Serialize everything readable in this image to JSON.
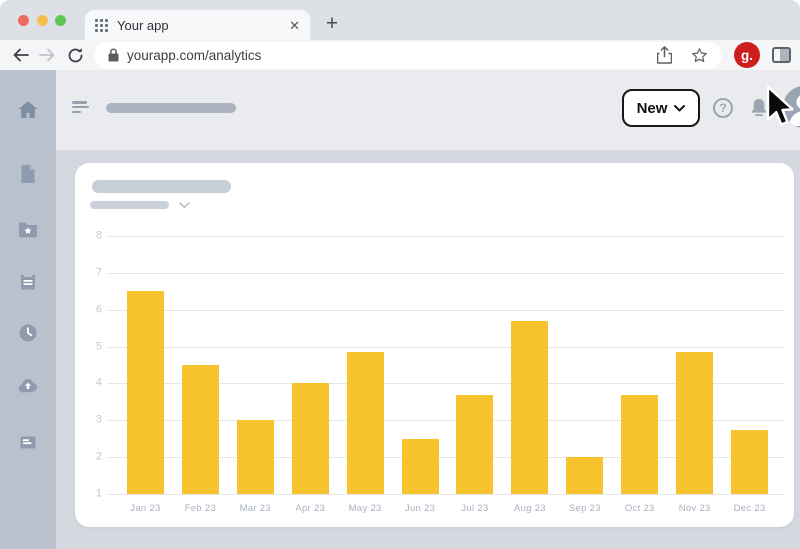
{
  "window": {
    "traffic_lights": [
      {
        "name": "close",
        "color": "#EC6A5E"
      },
      {
        "name": "minimize",
        "color": "#F5BF4F"
      },
      {
        "name": "zoom",
        "color": "#61C554"
      }
    ]
  },
  "browser": {
    "tab_title": "Your app",
    "tab_close_glyph": "✕",
    "new_tab_glyph": "+",
    "url": "yourapp.com/analytics",
    "g_badge": "g.",
    "toolbar_icons": [
      "back-icon",
      "forward-icon",
      "reload-icon",
      "lock-icon",
      "share-icon",
      "bookmark-star-icon",
      "g-badge",
      "side-panel-icon"
    ]
  },
  "app": {
    "new_button": "New",
    "help_glyph": "?",
    "header_icons": [
      "menu-icon",
      "help-icon",
      "bell-icon",
      "avatar"
    ],
    "sidebar_icons": [
      "home-icon",
      "document-icon",
      "starred-folder-icon",
      "ledger-icon",
      "history-clock-icon",
      "cloud-upload-icon",
      "notes-icon"
    ]
  },
  "colors": {
    "bar": "#F7C32F",
    "badge_red": "#CD1D1D",
    "sidebar_bg": "#B9C1CC",
    "content_bg": "#D5D9DF",
    "header_bg": "#E9EBEE"
  },
  "chart_data": {
    "type": "bar",
    "title": "",
    "categories": [
      "Jan 23",
      "Feb 23",
      "Mar 23",
      "Apr 23",
      "May 23",
      "Jun 23",
      "Jul 23",
      "Aug 23",
      "Sep 23",
      "Oct 23",
      "Nov 23",
      "Dec 23"
    ],
    "values": [
      6.5,
      4.5,
      3,
      4,
      4.85,
      2.5,
      3.7,
      5.7,
      2,
      3.7,
      4.85,
      2.75
    ],
    "xlabel": "",
    "ylabel": "",
    "ylim": [
      1,
      8
    ],
    "yticks": [
      1,
      2,
      3,
      4,
      5,
      6,
      7,
      8
    ],
    "bar_color": "#F7C32F",
    "grid": true,
    "legend": false
  }
}
